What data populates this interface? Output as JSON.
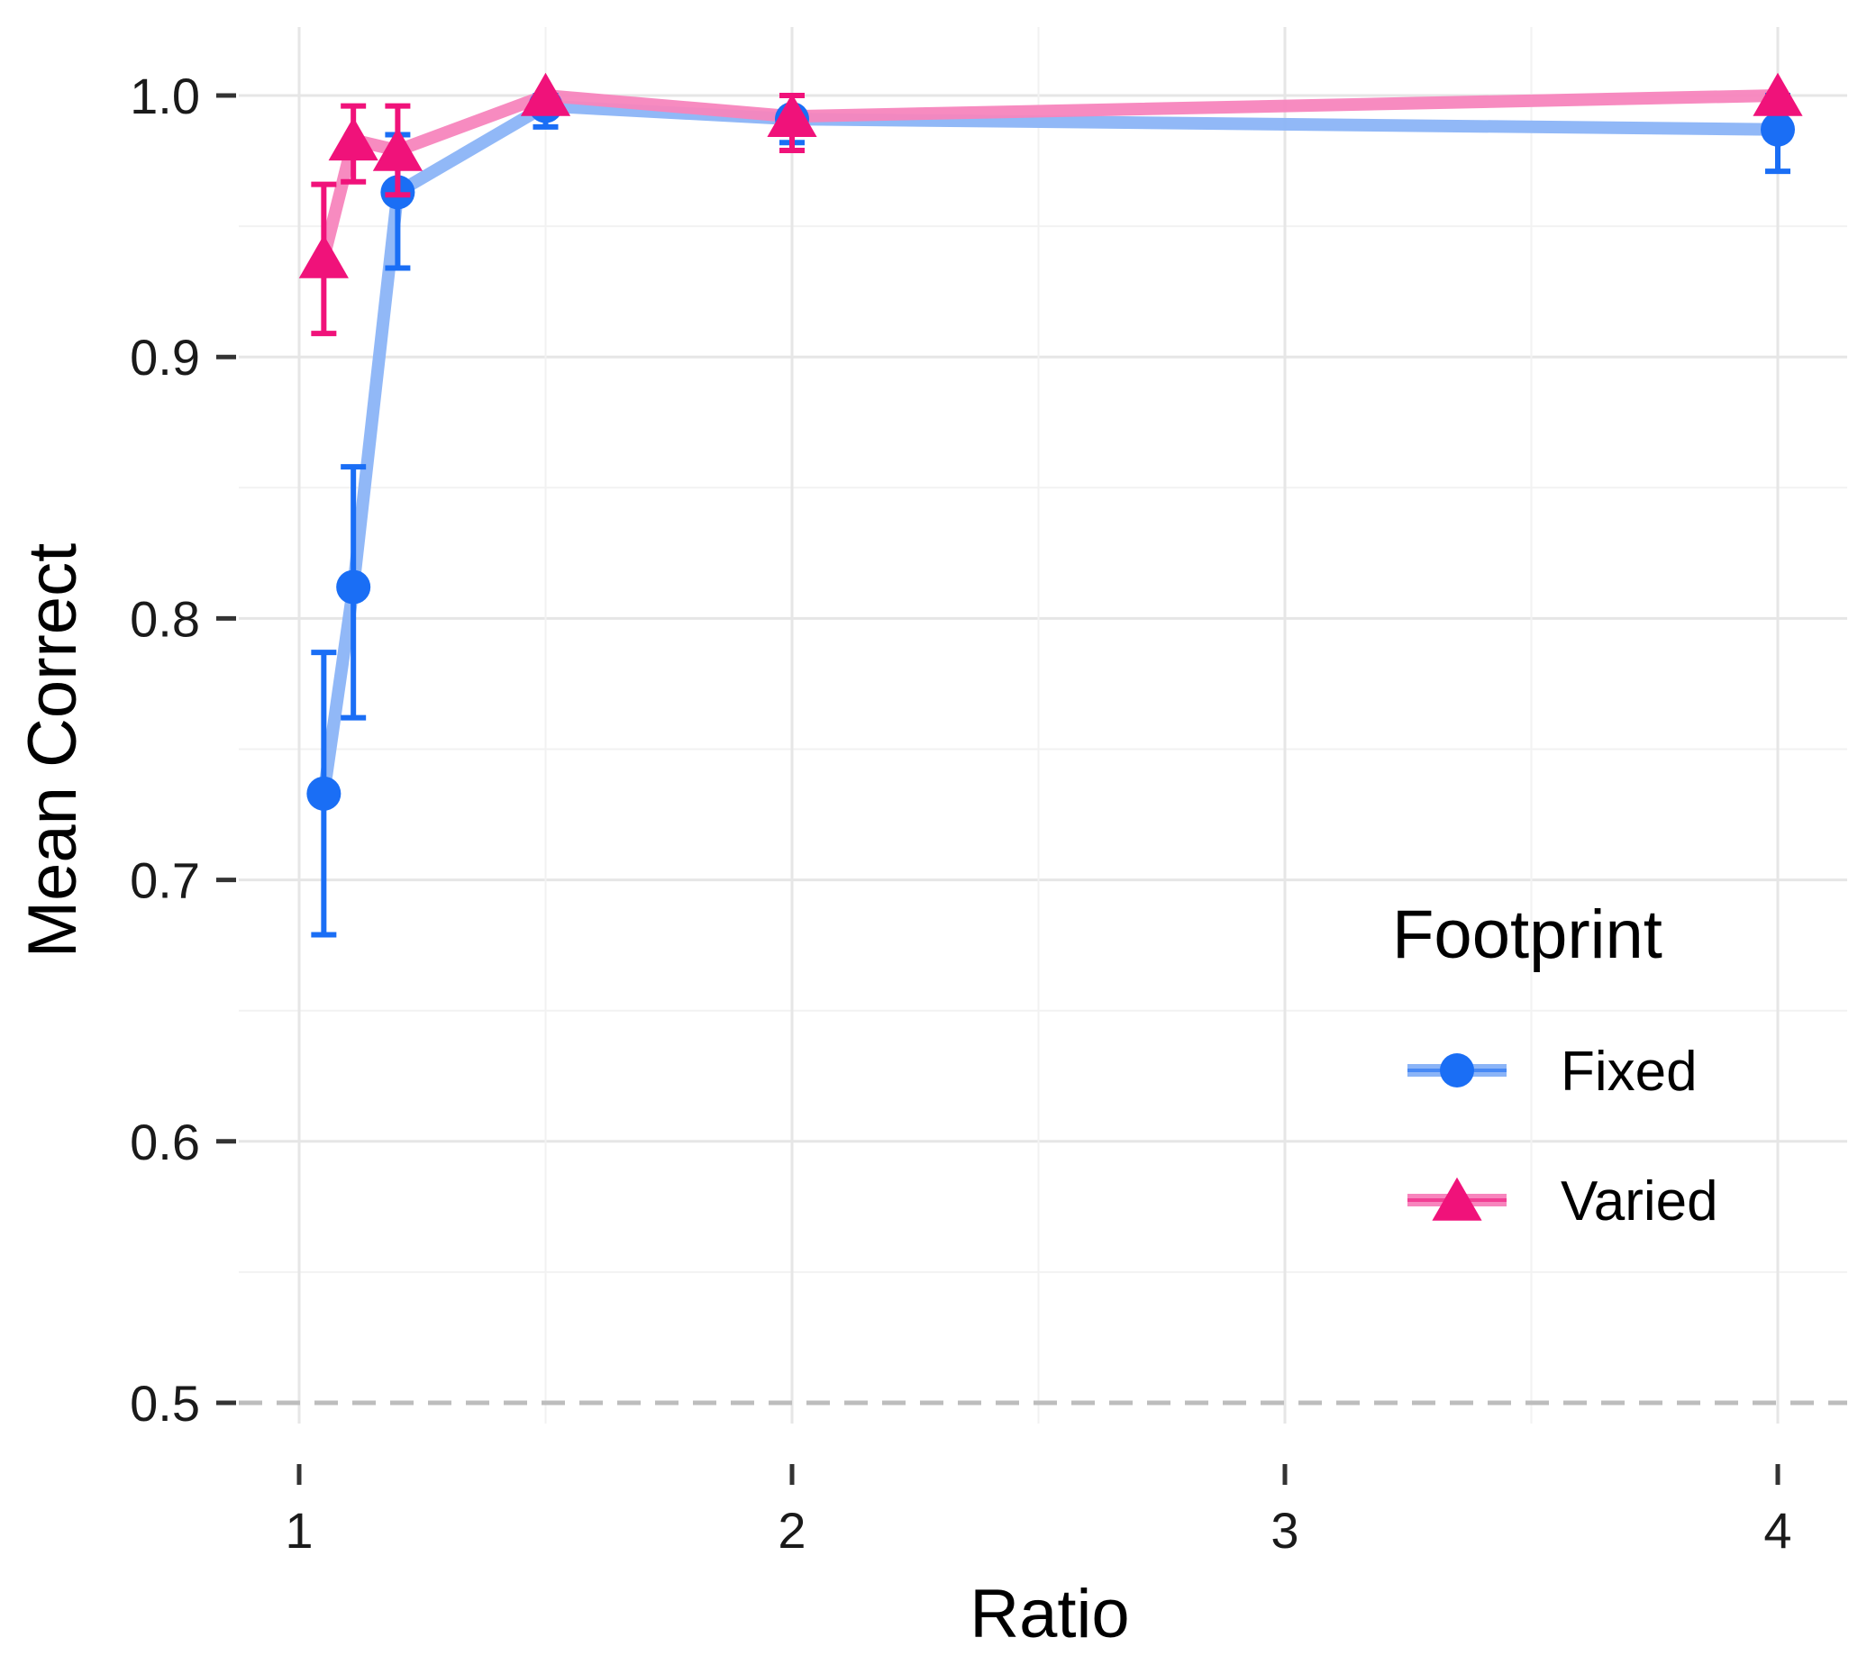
{
  "chart_data": {
    "type": "line",
    "xlabel": "Ratio",
    "ylabel": "Mean Correct",
    "xlim": [
      0.95,
      4.15
    ],
    "ylim": [
      0.5,
      1.0
    ],
    "x_ticks": [
      "1",
      "2",
      "3",
      "4"
    ],
    "y_ticks": [
      "0.5",
      "0.6",
      "0.7",
      "0.8",
      "0.9",
      "1.0"
    ],
    "reference_line": {
      "y": 0.5,
      "style": "dashed",
      "color": "#bdbdbd"
    },
    "grid": true,
    "legend": {
      "title": "Footprint",
      "position": "right"
    },
    "series": [
      {
        "name": "Fixed",
        "color": "#1a6ef5",
        "line_color": "#8bb4f7",
        "marker": "circle",
        "points": [
          {
            "x": 1.05,
            "y": 0.733,
            "lo": 0.679,
            "hi": 0.787
          },
          {
            "x": 1.11,
            "y": 0.812,
            "lo": 0.762,
            "hi": 0.858
          },
          {
            "x": 1.2,
            "y": 0.963,
            "lo": 0.934,
            "hi": 0.985
          },
          {
            "x": 1.5,
            "y": 0.996,
            "lo": 0.988,
            "hi": 1.0
          },
          {
            "x": 2.0,
            "y": 0.991,
            "lo": 0.982,
            "hi": 1.0
          },
          {
            "x": 4.0,
            "y": 0.987,
            "lo": 0.971,
            "hi": 1.0
          }
        ]
      },
      {
        "name": "Varied",
        "color": "#f0127a",
        "line_color": "#f785bd",
        "marker": "triangle",
        "points": [
          {
            "x": 1.05,
            "y": 0.938,
            "lo": 0.909,
            "hi": 0.966
          },
          {
            "x": 1.11,
            "y": 0.983,
            "lo": 0.967,
            "hi": 0.996
          },
          {
            "x": 1.2,
            "y": 0.979,
            "lo": 0.962,
            "hi": 0.996
          },
          {
            "x": 1.5,
            "y": 1.0,
            "lo": 1.0,
            "hi": 1.0
          },
          {
            "x": 2.0,
            "y": 0.992,
            "lo": 0.979,
            "hi": 1.0
          },
          {
            "x": 4.0,
            "y": 1.0,
            "lo": 1.0,
            "hi": 1.0
          }
        ]
      }
    ]
  }
}
